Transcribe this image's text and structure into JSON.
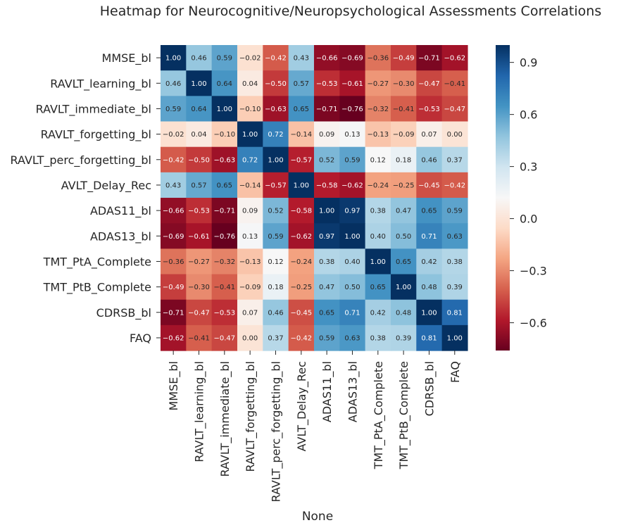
{
  "chart_data": {
    "type": "heatmap",
    "title": "Heatmap for Neurocognitive/Neuropsychological Assessments Correlations",
    "xlabel": "None",
    "ylabel": "",
    "rows": [
      "MMSE_bl",
      "RAVLT_learning_bl",
      "RAVLT_immediate_bl",
      "RAVLT_forgetting_bl",
      "RAVLT_perc_forgetting_bl",
      "AVLT_Delay_Rec",
      "ADAS11_bl",
      "ADAS13_bl",
      "TMT_PtA_Complete",
      "TMT_PtB_Complete",
      "CDRSB_bl",
      "FAQ"
    ],
    "columns": [
      "MMSE_bl",
      "RAVLT_learning_bl",
      "RAVLT_immediate_bl",
      "RAVLT_forgetting_bl",
      "RAVLT_perc_forgetting_bl",
      "AVLT_Delay_Rec",
      "ADAS11_bl",
      "ADAS13_bl",
      "TMT_PtA_Complete",
      "TMT_PtB_Complete",
      "CDRSB_bl",
      "FAQ"
    ],
    "values": [
      [
        1.0,
        0.46,
        0.59,
        -0.02,
        -0.42,
        0.43,
        -0.66,
        -0.69,
        -0.36,
        -0.49,
        -0.71,
        -0.62
      ],
      [
        0.46,
        1.0,
        0.64,
        0.04,
        -0.5,
        0.57,
        -0.53,
        -0.61,
        -0.27,
        -0.3,
        -0.47,
        -0.41
      ],
      [
        0.59,
        0.64,
        1.0,
        -0.1,
        -0.63,
        0.65,
        -0.71,
        -0.76,
        -0.32,
        -0.41,
        -0.53,
        -0.47
      ],
      [
        -0.02,
        0.04,
        -0.1,
        1.0,
        0.72,
        -0.14,
        0.09,
        0.13,
        -0.13,
        -0.09,
        0.07,
        0.0
      ],
      [
        -0.42,
        -0.5,
        -0.63,
        0.72,
        1.0,
        -0.57,
        0.52,
        0.59,
        0.12,
        0.18,
        0.46,
        0.37
      ],
      [
        0.43,
        0.57,
        0.65,
        -0.14,
        -0.57,
        1.0,
        -0.58,
        -0.62,
        -0.24,
        -0.25,
        -0.45,
        -0.42
      ],
      [
        -0.66,
        -0.53,
        -0.71,
        0.09,
        0.52,
        -0.58,
        1.0,
        0.97,
        0.38,
        0.47,
        0.65,
        0.59
      ],
      [
        -0.69,
        -0.61,
        -0.76,
        0.13,
        0.59,
        -0.62,
        0.97,
        1.0,
        0.4,
        0.5,
        0.71,
        0.63
      ],
      [
        -0.36,
        -0.27,
        -0.32,
        -0.13,
        0.12,
        -0.24,
        0.38,
        0.4,
        1.0,
        0.65,
        0.42,
        0.38
      ],
      [
        -0.49,
        -0.3,
        -0.41,
        -0.09,
        0.18,
        -0.25,
        0.47,
        0.5,
        0.65,
        1.0,
        0.48,
        0.39
      ],
      [
        -0.71,
        -0.47,
        -0.53,
        0.07,
        0.46,
        -0.45,
        0.65,
        0.71,
        0.42,
        0.48,
        1.0,
        0.81
      ],
      [
        -0.62,
        -0.41,
        -0.47,
        0.0,
        0.37,
        -0.42,
        0.59,
        0.63,
        0.38,
        0.39,
        0.81,
        1.0
      ]
    ],
    "value_format": "0.00",
    "colorscale": "RdBu",
    "colorscale_stops": [
      "#67001f",
      "#b2182b",
      "#d6604d",
      "#f4a582",
      "#fddbc7",
      "#f7f7f7",
      "#d1e5f0",
      "#92c5de",
      "#4393c3",
      "#2166ac",
      "#053061"
    ],
    "vmin": -0.76,
    "vmax": 1.0,
    "colorbar_ticks": [
      0.9,
      0.6,
      0.3,
      0.0,
      -0.3,
      -0.6
    ],
    "colorbar_tick_labels": [
      "0.9",
      "0.6",
      "0.3",
      "0.0",
      "−0.3",
      "−0.6"
    ],
    "colorbar_position": "right",
    "grid": false
  }
}
